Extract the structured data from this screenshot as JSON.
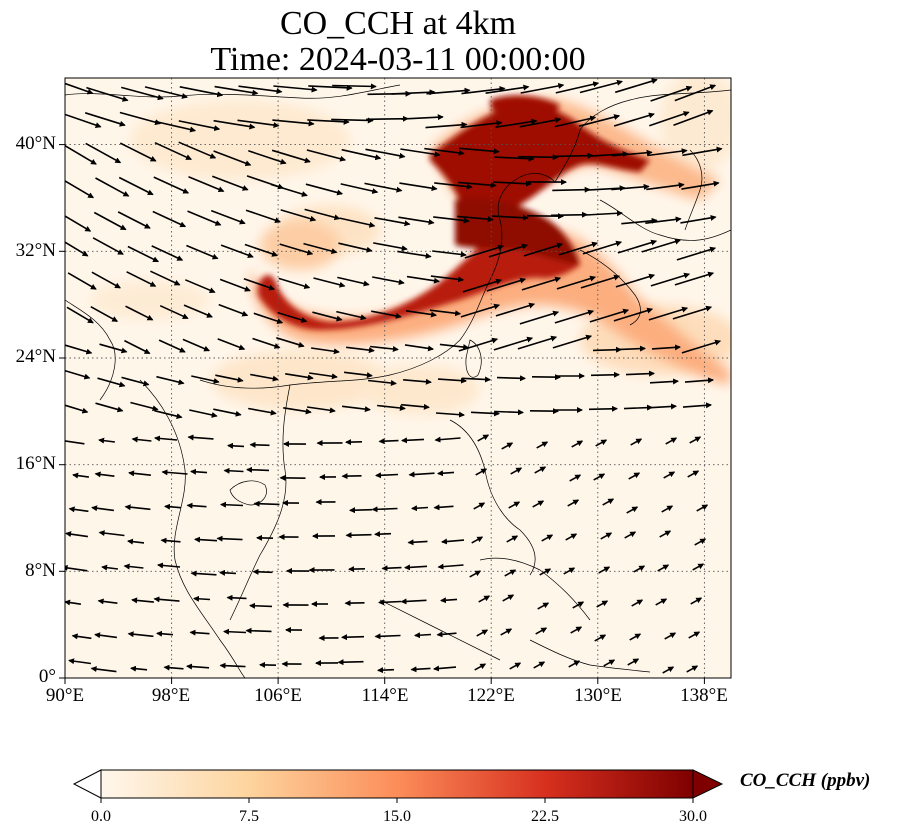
{
  "title": {
    "line1": "CO_CCH at 4km",
    "line2": "Time: 2024-03-11 00:00:00"
  },
  "map": {
    "variable": "CO_CCH",
    "level": "4km",
    "time": "2024-03-11 00:00:00",
    "lon_range": [
      90,
      140
    ],
    "lat_range": [
      0,
      44
    ],
    "x_ticks": [
      "90°E",
      "98°E",
      "106°E",
      "114°E",
      "122°E",
      "130°E",
      "138°E"
    ],
    "y_ticks": [
      "0°",
      "8°N",
      "16°N",
      "24°N",
      "32°N",
      "40°N"
    ],
    "gridlines": true,
    "overlay": "wind vectors",
    "colormap": "OrRd"
  },
  "colorbar": {
    "label": "CO_CCH (ppbv)",
    "ticks": [
      "0.0",
      "7.5",
      "15.0",
      "22.5",
      "30.0"
    ],
    "range": [
      0,
      30
    ],
    "extend": "both",
    "colors": [
      "#fff7ec",
      "#fdd49e",
      "#fc8d59",
      "#d7301f",
      "#7f0000"
    ]
  }
}
